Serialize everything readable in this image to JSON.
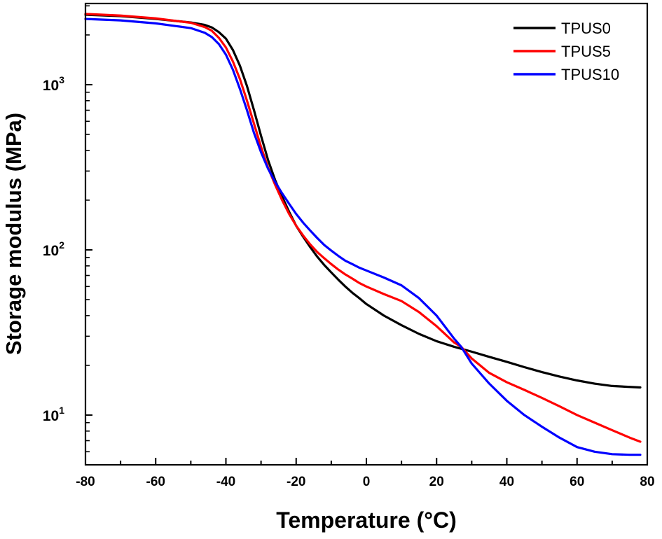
{
  "chart_data": {
    "type": "line",
    "title": "",
    "xlabel": "Temperature (°C)",
    "ylabel": "Storage modulus (MPa)",
    "xlim": [
      -80,
      80
    ],
    "ylim": [
      5,
      3100
    ],
    "yscale": "log",
    "x_ticks": [
      -80,
      -60,
      -40,
      -20,
      0,
      20,
      40,
      60,
      80
    ],
    "x_tick_labels": [
      "-80",
      "-60",
      "-40",
      "-20",
      "0",
      "20",
      "40",
      "60",
      "80"
    ],
    "y_ticks": [
      {
        "base": "10",
        "exp": "1",
        "value": 10
      },
      {
        "base": "10",
        "exp": "2",
        "value": 100
      },
      {
        "base": "10",
        "exp": "3",
        "value": 1000
      }
    ],
    "grid": false,
    "legend_position": "top-right",
    "series": [
      {
        "name": "TPUS0",
        "color": "#000000",
        "x": [
          -80,
          -70,
          -60,
          -50,
          -46,
          -44,
          -42,
          -40,
          -38,
          -36,
          -34,
          -32,
          -30,
          -28,
          -26,
          -24,
          -22,
          -20,
          -18,
          -16,
          -14,
          -12,
          -10,
          -8,
          -6,
          -4,
          -2,
          0,
          5,
          10,
          15,
          20,
          25,
          30,
          35,
          40,
          45,
          50,
          55,
          60,
          65,
          70,
          75,
          78
        ],
        "y": [
          2650,
          2600,
          2500,
          2380,
          2300,
          2220,
          2080,
          1900,
          1620,
          1300,
          980,
          700,
          490,
          350,
          265,
          210,
          170,
          140,
          120,
          104,
          91,
          81,
          73,
          66,
          60,
          55,
          51,
          47,
          40,
          35,
          31,
          28,
          25.9,
          24.2,
          22.5,
          21,
          19.5,
          18.2,
          17.1,
          16.2,
          15.5,
          15.0,
          14.8,
          14.7
        ]
      },
      {
        "name": "TPUS5",
        "color": "#ff0000",
        "x": [
          -80,
          -70,
          -60,
          -50,
          -46,
          -44,
          -42,
          -40,
          -38,
          -36,
          -34,
          -32,
          -30,
          -28,
          -26,
          -24,
          -22,
          -20,
          -18,
          -16,
          -14,
          -12,
          -10,
          -8,
          -6,
          -4,
          -2,
          0,
          5,
          10,
          15,
          20,
          25,
          27,
          30,
          35,
          40,
          45,
          50,
          55,
          60,
          65,
          70,
          75,
          78
        ],
        "y": [
          2680,
          2620,
          2520,
          2370,
          2230,
          2120,
          1920,
          1680,
          1380,
          1080,
          800,
          580,
          420,
          315,
          248,
          200,
          165,
          140,
          122,
          108,
          97,
          89,
          82,
          76,
          71,
          67,
          63,
          60,
          54,
          49,
          42,
          34.5,
          27.5,
          25.9,
          22,
          18,
          15.8,
          14.2,
          12.7,
          11.3,
          10.0,
          9.0,
          8.1,
          7.3,
          6.9
        ]
      },
      {
        "name": "TPUS10",
        "color": "#0000ff",
        "x": [
          -80,
          -70,
          -60,
          -50,
          -46,
          -44,
          -42,
          -40,
          -38,
          -36,
          -34,
          -32,
          -30,
          -28,
          -26,
          -24,
          -22,
          -20,
          -18,
          -16,
          -14,
          -12,
          -10,
          -8,
          -6,
          -4,
          -2,
          0,
          5,
          10,
          15,
          20,
          25,
          27,
          30,
          35,
          40,
          45,
          50,
          55,
          60,
          65,
          70,
          75,
          78
        ],
        "y": [
          2500,
          2450,
          2350,
          2200,
          2060,
          1940,
          1760,
          1520,
          1230,
          940,
          700,
          510,
          390,
          310,
          258,
          220,
          190,
          165,
          146,
          131,
          118,
          107,
          99,
          92,
          86,
          82,
          78,
          75,
          68,
          61,
          51,
          40,
          29,
          25.9,
          20.5,
          15.5,
          12.2,
          10.0,
          8.5,
          7.3,
          6.4,
          6.0,
          5.8,
          5.75,
          5.75
        ]
      }
    ]
  }
}
